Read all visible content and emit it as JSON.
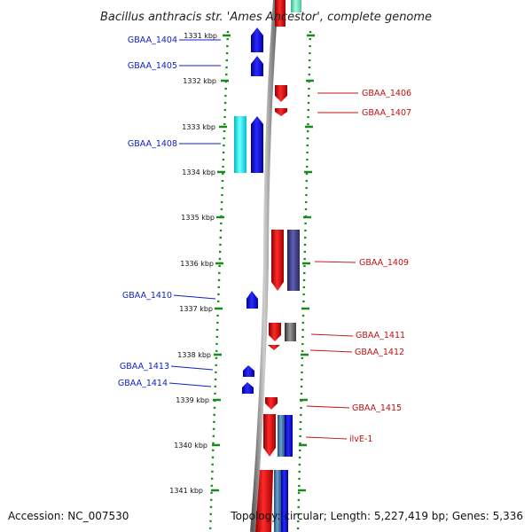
{
  "title": "Bacillus anthracis str. 'Ames Ancestor', complete genome",
  "footer": {
    "accession": "Accession: NC_007530",
    "topology": "Topology: circular; Length: 5,227,419 bp; Genes: 5,336"
  },
  "scale_labels": [
    "1331 kbp",
    "1332 kbp",
    "1333 kbp",
    "1334 kbp",
    "1335 kbp",
    "1336 kbp",
    "1337 kbp",
    "1338 kbp",
    "1339 kbp",
    "1340 kbp",
    "1341 kbp"
  ],
  "genes_left": [
    "GBAA_1404",
    "GBAA_1405",
    "GBAA_1408",
    "GBAA_1410",
    "GBAA_1413",
    "GBAA_1414"
  ],
  "genes_right": [
    "GBAA_1406",
    "GBAA_1407",
    "GBAA_1409",
    "GBAA_1411",
    "GBAA_1412",
    "GBAA_1415",
    "ilvE-1"
  ],
  "colors": {
    "forward_strand": "#1010e0",
    "reverse_strand": "#e01010",
    "left_label": "#1020c8",
    "right_label": "#c01010",
    "backbone": "#8a8a8a",
    "ticks": "#1a8a1a"
  }
}
